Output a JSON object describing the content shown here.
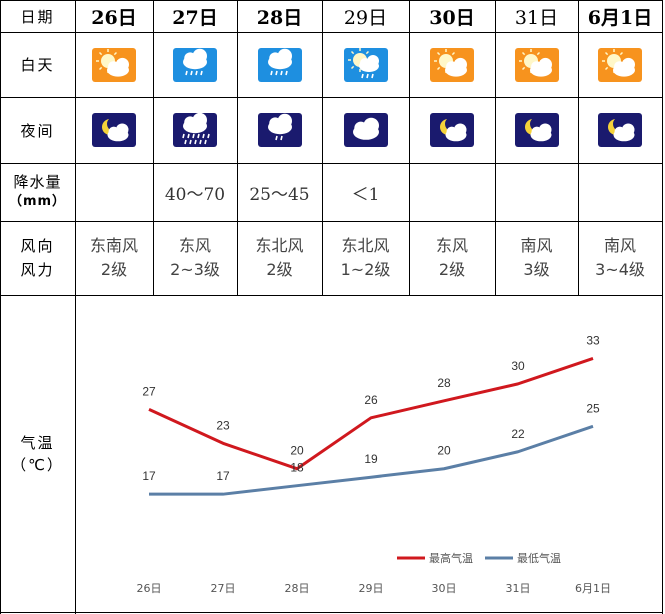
{
  "header": {
    "date_label": "日期",
    "dates": [
      {
        "text": "26日",
        "bold": true
      },
      {
        "text": "27日",
        "bold": true
      },
      {
        "text": "28日",
        "bold": true
      },
      {
        "text": "29日",
        "bold": false
      },
      {
        "text": "30日",
        "bold": true
      },
      {
        "text": "31日",
        "bold": false
      },
      {
        "text": "6月1日",
        "bold": true
      }
    ]
  },
  "rows": {
    "day_label": "白天",
    "night_label": "夜间",
    "rain_label_1": "降水量",
    "rain_label_2": "（mm）",
    "wind_label_1": "风向",
    "wind_label_2": "风力",
    "temp_label_1": "气温",
    "temp_label_2": "（℃）"
  },
  "day_icons": [
    "sun-cloud-icon",
    "rain-cloud-icon",
    "rain-cloud-icon",
    "sun-rain-cloud-icon",
    "sun-cloud-icon",
    "sun-cloud-icon",
    "sun-cloud-icon"
  ],
  "night_icons": [
    "moon-cloud-icon",
    "heavy-rain-night-icon",
    "rain-night-icon",
    "cloud-night-icon",
    "moon-cloud-icon",
    "moon-cloud-icon",
    "moon-cloud-icon"
  ],
  "icon_colors": {
    "day_bg": "#f7931e",
    "rain_day_bg": "#1e8fe0",
    "night_bg": "#1a1a6e",
    "moon": "#f5d23a"
  },
  "rain": [
    "",
    "40～70",
    "25～45",
    "＜1",
    "",
    "",
    ""
  ],
  "wind_dir": [
    "东南风",
    "东风",
    "东北风",
    "东北风",
    "东风",
    "南风",
    "南风"
  ],
  "wind_force": [
    "2级",
    "2~3级",
    "2级",
    "1~2级",
    "2级",
    "3级",
    "3~4级"
  ],
  "chart_data": {
    "type": "line",
    "categories": [
      "26日",
      "27日",
      "28日",
      "29日",
      "30日",
      "31日",
      "6月1日"
    ],
    "series": [
      {
        "name": "最高气温",
        "values": [
          27,
          23,
          20,
          26,
          28,
          30,
          33
        ],
        "color": "#d0181e"
      },
      {
        "name": "最低气温",
        "values": [
          17,
          17,
          18,
          19,
          20,
          22,
          25
        ],
        "color": "#5b7fa6"
      }
    ],
    "ylim": [
      5,
      38
    ],
    "grid": false,
    "legend_position": "bottom-right"
  }
}
